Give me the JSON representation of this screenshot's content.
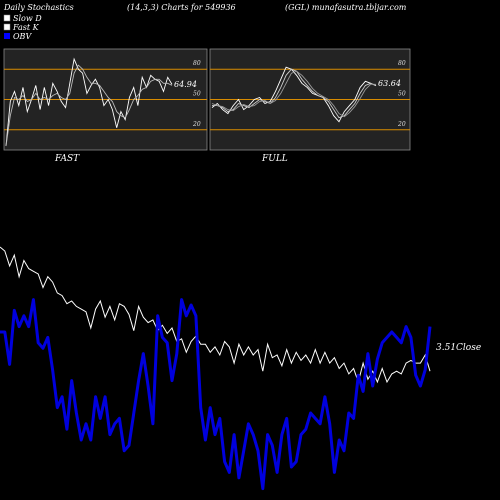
{
  "header": {
    "title_left": "Daily Stochastics",
    "title_params": "(14,3,3) Charts for 549936",
    "title_right": "(GGL) munafasutra.tbljar.com"
  },
  "legend": [
    {
      "label": "Slow  D",
      "swatch": "#ffffff"
    },
    {
      "label": "Fast K",
      "swatch": "#ffffff"
    },
    {
      "label": "OBV",
      "swatch": "#0000ff"
    }
  ],
  "colors": {
    "background": "#000000",
    "panel": "#232323",
    "band": "#d98c00",
    "price_line": "#ffffff",
    "obv_line": "#0000dd"
  },
  "chart_data": [
    {
      "type": "line",
      "name": "fast-stochastic",
      "panel_label": "FAST",
      "ylim": [
        0,
        100
      ],
      "ticks": [
        "80",
        "50",
        "20"
      ],
      "tick_values": [
        80,
        50,
        20
      ],
      "last_value_label": "64.94",
      "series": [
        {
          "values": [
            4,
            48,
            58,
            44,
            62,
            38,
            50,
            64,
            40,
            62,
            44,
            66,
            58,
            48,
            42,
            66,
            90,
            80,
            76,
            56,
            64,
            70,
            62,
            44,
            50,
            40,
            22,
            38,
            30,
            52,
            62,
            44,
            72,
            62,
            74,
            70,
            68,
            58,
            72,
            64.94
          ]
        },
        {
          "values": [
            4,
            34,
            52,
            50,
            54,
            48,
            50,
            56,
            50,
            52,
            50,
            54,
            56,
            52,
            50,
            56,
            76,
            84,
            80,
            72,
            66,
            66,
            64,
            58,
            52,
            48,
            38,
            34,
            32,
            40,
            50,
            54,
            60,
            62,
            68,
            70,
            70,
            66,
            66,
            64
          ]
        }
      ]
    },
    {
      "type": "line",
      "name": "full-stochastic",
      "panel_label": "FULL",
      "ylim": [
        0,
        100
      ],
      "ticks": [
        "80",
        "50",
        "20"
      ],
      "tick_values": [
        80,
        50,
        20
      ],
      "last_value_label": "63.64",
      "series": [
        {
          "values": [
            42,
            46,
            40,
            36,
            44,
            50,
            40,
            44,
            50,
            52,
            46,
            48,
            58,
            70,
            82,
            80,
            74,
            66,
            62,
            56,
            54,
            52,
            44,
            34,
            28,
            38,
            44,
            50,
            62,
            68,
            66,
            63.64
          ]
        },
        {
          "values": [
            44,
            44,
            42,
            38,
            40,
            46,
            44,
            42,
            46,
            50,
            48,
            46,
            52,
            62,
            74,
            80,
            78,
            70,
            64,
            58,
            54,
            52,
            48,
            40,
            32,
            34,
            40,
            46,
            56,
            64,
            66,
            64
          ]
        },
        {
          "values": [
            46,
            44,
            43,
            40,
            39,
            43,
            45,
            43,
            44,
            48,
            49,
            46,
            49,
            56,
            66,
            76,
            78,
            74,
            68,
            61,
            56,
            53,
            50,
            44,
            36,
            33,
            37,
            43,
            51,
            60,
            65,
            65
          ]
        }
      ]
    },
    {
      "type": "line",
      "name": "price-and-obv",
      "close_label": "3.51",
      "close_suffix": "Close",
      "series": [
        {
          "values": [
            100,
            97,
            86,
            94,
            78,
            90,
            84,
            82,
            80,
            70,
            78,
            74,
            66,
            64,
            58,
            60,
            56,
            54,
            52,
            40,
            54,
            60,
            48,
            56,
            46,
            58,
            56,
            50,
            38,
            56,
            48,
            44,
            46,
            38,
            42,
            36,
            40,
            30,
            32,
            22,
            30,
            34,
            28,
            28,
            22,
            26,
            20,
            30,
            26,
            14,
            28,
            20,
            26,
            20,
            24,
            8,
            28,
            18,
            20,
            12,
            24,
            14,
            22,
            16,
            20,
            14,
            24,
            14,
            22,
            14,
            18,
            10,
            14,
            6,
            10,
            0,
            14,
            2,
            8,
            0,
            10,
            0,
            6,
            8,
            6,
            14,
            16,
            14,
            14,
            20,
            8
          ]
        },
        {
          "values": [
            60,
            60,
            48,
            68,
            62,
            66,
            62,
            72,
            56,
            54,
            58,
            46,
            32,
            36,
            24,
            42,
            30,
            20,
            26,
            20,
            36,
            28,
            36,
            22,
            26,
            28,
            16,
            18,
            30,
            42,
            52,
            40,
            26,
            66,
            58,
            56,
            42,
            52,
            72,
            66,
            70,
            66,
            32,
            20,
            32,
            22,
            28,
            12,
            8,
            22,
            6,
            16,
            26,
            22,
            16,
            2,
            22,
            18,
            8,
            22,
            28,
            10,
            12,
            22,
            24,
            30,
            28,
            26,
            36,
            26,
            8,
            20,
            16,
            30,
            28,
            44,
            38,
            52,
            40,
            50,
            56,
            58,
            60,
            58,
            56,
            62,
            58,
            44,
            40,
            46,
            62
          ]
        }
      ]
    }
  ]
}
